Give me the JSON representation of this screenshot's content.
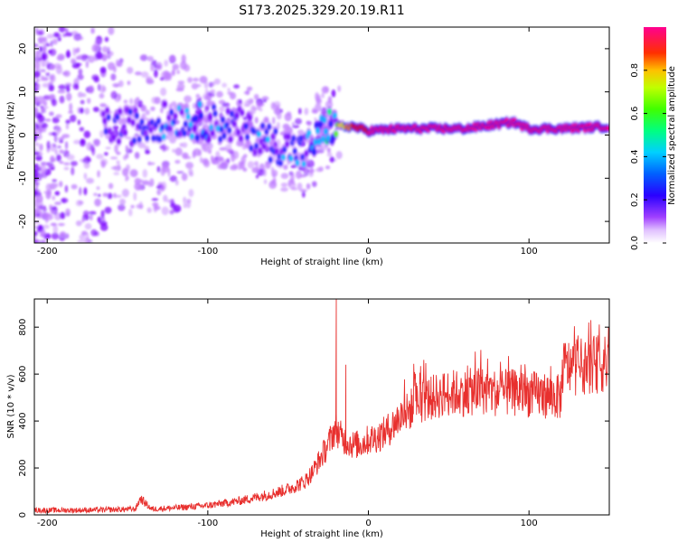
{
  "figure_title": "S173.2025.329.20.19.R11",
  "chart_data": [
    {
      "type": "heatmap",
      "title": "S173.2025.329.20.19.R11",
      "xlabel": "Height of straight line (km)",
      "ylabel": "Frequency (Hz)",
      "xlim": [
        -208,
        150
      ],
      "ylim": [
        -25,
        25
      ],
      "xticks": [
        -200,
        -100,
        0,
        100
      ],
      "xtick_labels": [
        "-200",
        "-100",
        "0",
        "100"
      ],
      "yticks": [
        -20,
        -10,
        0,
        10,
        20
      ],
      "ytick_labels": [
        "-20",
        "-10",
        "0",
        "10",
        "20"
      ],
      "colorbar": {
        "label": "Normalized spectral amplitude",
        "range": [
          0,
          1
        ],
        "ticks": [
          0,
          0.2,
          0.4,
          0.6,
          0.8
        ],
        "tick_labels": [
          "0.0",
          "0.2",
          "0.4",
          "0.6",
          "0.8"
        ],
        "colors": [
          "#ffffff",
          "#c080ff",
          "#7a00ff",
          "#2020ff",
          "#00c0ff",
          "#00ff80",
          "#60ff00",
          "#ffff00",
          "#ff8000",
          "#ff0000",
          "#ff0080"
        ]
      },
      "ridge": {
        "description_points_x": [
          -160,
          -140,
          -120,
          -100,
          -80,
          -60,
          -40,
          -25,
          -10,
          0,
          20,
          40,
          60,
          80,
          90,
          100,
          120,
          150
        ],
        "frequency_hz": [
          2,
          2,
          4,
          3,
          2,
          -2,
          -4,
          2,
          2,
          1,
          1.5,
          1.5,
          1.5,
          2.5,
          3,
          1.5,
          1.5,
          2
        ],
        "amplitude": [
          0.3,
          0.35,
          0.4,
          0.45,
          0.3,
          0.4,
          0.4,
          0.5,
          0.85,
          0.95,
          0.95,
          0.95,
          0.95,
          0.95,
          0.95,
          0.95,
          0.95,
          0.95
        ]
      }
    },
    {
      "type": "line",
      "xlabel": "Height of straight line (km)",
      "ylabel": "SNR (10 * v/v)",
      "xlim": [
        -208,
        150
      ],
      "ylim": [
        0,
        920
      ],
      "xticks": [
        -200,
        -100,
        0,
        100
      ],
      "xtick_labels": [
        "-200",
        "-100",
        "0",
        "100"
      ],
      "yticks": [
        0,
        200,
        400,
        600,
        800
      ],
      "ytick_labels": [
        "0",
        "200",
        "400",
        "600",
        "800"
      ],
      "series": [
        {
          "name": "SNR",
          "color": "#e8302e",
          "x": [
            -208,
            -180,
            -160,
            -145,
            -142,
            -135,
            -120,
            -100,
            -90,
            -80,
            -70,
            -60,
            -50,
            -40,
            -35,
            -30,
            -25,
            -22,
            -20,
            -18,
            -15,
            -10,
            -5,
            0,
            5,
            10,
            15,
            20,
            25,
            30,
            40,
            50,
            60,
            70,
            80,
            90,
            100,
            110,
            120,
            121,
            130,
            140,
            150
          ],
          "y": [
            20,
            20,
            22,
            25,
            70,
            25,
            30,
            40,
            50,
            60,
            75,
            90,
            110,
            140,
            180,
            240,
            300,
            350,
            370,
            340,
            320,
            300,
            300,
            320,
            330,
            350,
            380,
            420,
            440,
            480,
            500,
            520,
            520,
            530,
            520,
            520,
            515,
            510,
            500,
            630,
            630,
            640,
            640
          ]
        }
      ],
      "annotations": {
        "spike_peak": {
          "x": -20,
          "y": 920
        },
        "spike_secondary": {
          "x": -14,
          "y": 640
        }
      }
    }
  ]
}
